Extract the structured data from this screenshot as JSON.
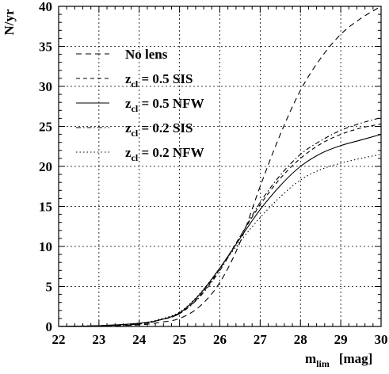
{
  "chart_data": {
    "type": "line",
    "title": "",
    "xlabel": "m_lim [mag]",
    "xlabel_main": "m",
    "xlabel_sub": "lim",
    "xlabel_unit": "[mag]",
    "ylabel": "N/yr",
    "xlim": [
      22,
      30
    ],
    "ylim": [
      0,
      40
    ],
    "xticks": [
      22,
      23,
      24,
      25,
      26,
      27,
      28,
      29,
      30
    ],
    "yticks": [
      0,
      5,
      10,
      15,
      20,
      25,
      30,
      35,
      40
    ],
    "grid": true,
    "legend_position": "top-left",
    "series": [
      {
        "name": "No lens",
        "legend_main": "No lens",
        "legend_sub": "",
        "legend_rest": "",
        "dash": "long-dash",
        "x": [
          22,
          23,
          24,
          24.5,
          25,
          25.5,
          26,
          26.5,
          27,
          27.5,
          28,
          28.5,
          29,
          29.5,
          30
        ],
        "y": [
          0,
          0.05,
          0.2,
          0.5,
          1.0,
          2.5,
          5.5,
          10.5,
          17.5,
          24.0,
          29.5,
          33.5,
          36.5,
          38.5,
          40.0
        ]
      },
      {
        "name": "z_cl = 0.5 SIS",
        "legend_main": "z",
        "legend_sub": "cl",
        "legend_rest": " = 0.5 SIS",
        "dash": "dash",
        "x": [
          22,
          23,
          24,
          24.5,
          25,
          25.5,
          26,
          26.5,
          27,
          27.5,
          28,
          28.5,
          29,
          29.5,
          30
        ],
        "y": [
          0,
          0.1,
          0.3,
          0.8,
          1.6,
          3.8,
          7.2,
          11.2,
          15.2,
          18.5,
          21.0,
          22.8,
          24.0,
          24.8,
          25.3
        ]
      },
      {
        "name": "z_cl = 0.5 NFW",
        "legend_main": "z",
        "legend_sub": "cl",
        "legend_rest": " = 0.5 NFW",
        "dash": "solid",
        "x": [
          22,
          23,
          24,
          24.5,
          25,
          25.5,
          26,
          26.5,
          27,
          27.5,
          28,
          28.5,
          29,
          29.5,
          30
        ],
        "y": [
          0,
          0.1,
          0.4,
          0.8,
          1.7,
          4.0,
          7.3,
          11.0,
          14.6,
          17.6,
          20.0,
          21.6,
          22.6,
          23.3,
          24.0
        ]
      },
      {
        "name": "z_cl = 0.2 SIS",
        "legend_main": "z",
        "legend_sub": "cl",
        "legend_rest": " = 0.2 SIS",
        "dash": "dash-dot",
        "x": [
          22,
          23,
          24,
          24.5,
          25,
          25.5,
          26,
          26.5,
          27,
          27.5,
          28,
          28.5,
          29,
          29.5,
          30
        ],
        "y": [
          0,
          0.1,
          0.3,
          0.8,
          1.6,
          3.7,
          7.0,
          11.2,
          15.5,
          18.9,
          21.5,
          23.2,
          24.5,
          25.4,
          26.1
        ]
      },
      {
        "name": "z_cl = 0.2 NFW",
        "legend_main": "z",
        "legend_sub": "cl",
        "legend_rest": " = 0.2 NFW",
        "dash": "dot",
        "x": [
          22,
          23,
          24,
          24.5,
          25,
          25.5,
          26,
          26.5,
          27,
          27.5,
          28,
          28.5,
          29,
          29.5,
          30
        ],
        "y": [
          0,
          0.1,
          0.4,
          0.9,
          1.8,
          4.1,
          7.3,
          10.6,
          13.6,
          16.2,
          18.3,
          19.6,
          20.4,
          21.0,
          21.5
        ]
      }
    ]
  }
}
